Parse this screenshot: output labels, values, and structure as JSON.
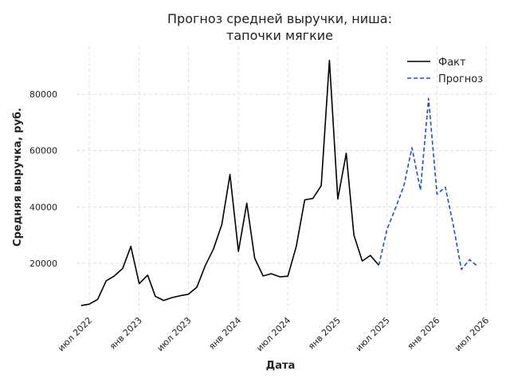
{
  "chart_data": {
    "type": "line",
    "title_lines": [
      "Прогноз средней выручки, ниша:",
      "тапочки мягкие"
    ],
    "xlabel": "Дата",
    "ylabel": "Средняя выручка, руб.",
    "xlim": [
      "2022-05-15",
      "2026-08-05"
    ],
    "ylim": [
      3000,
      97000
    ],
    "grid": true,
    "legend_position": "top-right",
    "y_ticks": [
      {
        "value": 20000,
        "label": "20000"
      },
      {
        "value": 40000,
        "label": "40000"
      },
      {
        "value": 60000,
        "label": "60000"
      },
      {
        "value": 80000,
        "label": "80000"
      }
    ],
    "x_ticks": [
      {
        "date": "2022-07-01",
        "label": "июл 2022"
      },
      {
        "date": "2023-01-01",
        "label": "янв 2023"
      },
      {
        "date": "2023-07-01",
        "label": "июл 2023"
      },
      {
        "date": "2024-01-01",
        "label": "янв 2024"
      },
      {
        "date": "2024-07-01",
        "label": "июл 2024"
      },
      {
        "date": "2025-01-01",
        "label": "янв 2025"
      },
      {
        "date": "2025-07-01",
        "label": "июл 2025"
      },
      {
        "date": "2026-01-01",
        "label": "янв 2026"
      },
      {
        "date": "2026-07-01",
        "label": "июл 2026"
      }
    ],
    "series": [
      {
        "name": "Факт",
        "color": "#000000",
        "dash": "solid",
        "points": [
          {
            "x": "2022-06-01",
            "y": 5000
          },
          {
            "x": "2022-07-01",
            "y": 5500
          },
          {
            "x": "2022-08-01",
            "y": 7200
          },
          {
            "x": "2022-09-01",
            "y": 13800
          },
          {
            "x": "2022-10-01",
            "y": 15500
          },
          {
            "x": "2022-11-01",
            "y": 18200
          },
          {
            "x": "2022-12-01",
            "y": 26000
          },
          {
            "x": "2023-01-01",
            "y": 12800
          },
          {
            "x": "2023-02-01",
            "y": 15800
          },
          {
            "x": "2023-03-01",
            "y": 8300
          },
          {
            "x": "2023-04-01",
            "y": 6800
          },
          {
            "x": "2023-05-01",
            "y": 7800
          },
          {
            "x": "2023-06-01",
            "y": 8500
          },
          {
            "x": "2023-07-01",
            "y": 9000
          },
          {
            "x": "2023-08-01",
            "y": 11500
          },
          {
            "x": "2023-09-01",
            "y": 19200
          },
          {
            "x": "2023-10-01",
            "y": 25000
          },
          {
            "x": "2023-11-01",
            "y": 33800
          },
          {
            "x": "2023-12-01",
            "y": 51500
          },
          {
            "x": "2024-01-01",
            "y": 24200
          },
          {
            "x": "2024-02-01",
            "y": 41300
          },
          {
            "x": "2024-03-01",
            "y": 21800
          },
          {
            "x": "2024-04-01",
            "y": 15500
          },
          {
            "x": "2024-05-01",
            "y": 16300
          },
          {
            "x": "2024-06-01",
            "y": 15200
          },
          {
            "x": "2024-07-01",
            "y": 15400
          },
          {
            "x": "2024-08-01",
            "y": 26000
          },
          {
            "x": "2024-09-01",
            "y": 42500
          },
          {
            "x": "2024-10-01",
            "y": 43000
          },
          {
            "x": "2024-11-01",
            "y": 47500
          },
          {
            "x": "2024-12-01",
            "y": 92000
          },
          {
            "x": "2025-01-01",
            "y": 42800
          },
          {
            "x": "2025-02-01",
            "y": 59000
          },
          {
            "x": "2025-03-01",
            "y": 30000
          },
          {
            "x": "2025-04-01",
            "y": 20800
          },
          {
            "x": "2025-05-01",
            "y": 22800
          },
          {
            "x": "2025-06-01",
            "y": 19300
          }
        ]
      },
      {
        "name": "Прогноз",
        "color": "#1f4fd0",
        "dash": "dashed",
        "points": [
          {
            "x": "2025-06-01",
            "y": 19300
          },
          {
            "x": "2025-07-01",
            "y": 32000
          },
          {
            "x": "2025-08-01",
            "y": 39500
          },
          {
            "x": "2025-09-01",
            "y": 47500
          },
          {
            "x": "2025-10-01",
            "y": 61000
          },
          {
            "x": "2025-11-01",
            "y": 46000
          },
          {
            "x": "2025-12-01",
            "y": 78500
          },
          {
            "x": "2026-01-01",
            "y": 44500
          },
          {
            "x": "2026-02-01",
            "y": 47000
          },
          {
            "x": "2026-03-01",
            "y": 34000
          },
          {
            "x": "2026-04-01",
            "y": 17800
          },
          {
            "x": "2026-05-01",
            "y": 21300
          },
          {
            "x": "2026-06-01",
            "y": 18800
          }
        ]
      }
    ]
  }
}
